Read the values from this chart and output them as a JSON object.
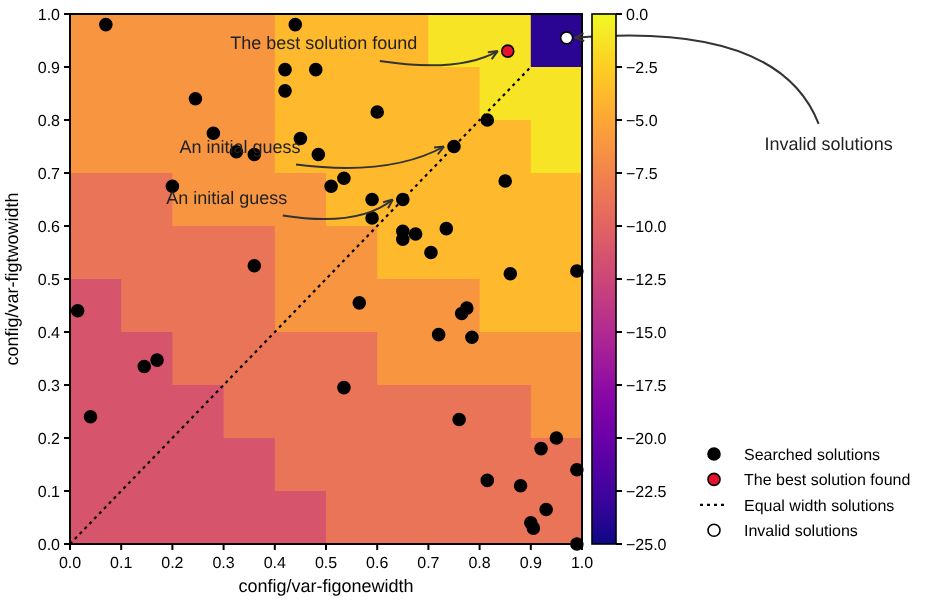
{
  "chart_data": {
    "type": "heatmap",
    "xlabel": "config/var-figonewidth",
    "ylabel": "config/var-figtwowidth",
    "xlim": [
      0,
      1
    ],
    "ylim": [
      0,
      1
    ],
    "xticks": [
      {
        "value": 0,
        "label": "0.0"
      },
      {
        "value": 0.1,
        "label": "0.1"
      },
      {
        "value": 0.2,
        "label": "0.2"
      },
      {
        "value": 0.3,
        "label": "0.3"
      },
      {
        "value": 0.4,
        "label": "0.4"
      },
      {
        "value": 0.5,
        "label": "0.5"
      },
      {
        "value": 0.6,
        "label": "0.6"
      },
      {
        "value": 0.7,
        "label": "0.7"
      },
      {
        "value": 0.8,
        "label": "0.8"
      },
      {
        "value": 0.9,
        "label": "0.9"
      },
      {
        "value": 1,
        "label": "1.0"
      }
    ],
    "yticks": [
      {
        "value": 0,
        "label": "0.0"
      },
      {
        "value": 0.1,
        "label": "0.1"
      },
      {
        "value": 0.2,
        "label": "0.2"
      },
      {
        "value": 0.3,
        "label": "0.3"
      },
      {
        "value": 0.4,
        "label": "0.4"
      },
      {
        "value": 0.5,
        "label": "0.5"
      },
      {
        "value": 0.6,
        "label": "0.6"
      },
      {
        "value": 0.7,
        "label": "0.7"
      },
      {
        "value": 0.8,
        "label": "0.8"
      },
      {
        "value": 0.9,
        "label": "0.9"
      },
      {
        "value": 1,
        "label": "1.0"
      }
    ],
    "clim": [
      -25,
      0
    ],
    "cticks": [
      {
        "value": 0,
        "label": "0.0"
      },
      {
        "value": -2.5,
        "label": "−2.5"
      },
      {
        "value": -5,
        "label": "−5.0"
      },
      {
        "value": -7.5,
        "label": "−7.5"
      },
      {
        "value": -10,
        "label": "−10.0"
      },
      {
        "value": -12.5,
        "label": "−12.5"
      },
      {
        "value": -15,
        "label": "−15.0"
      },
      {
        "value": -17.5,
        "label": "−17.5"
      },
      {
        "value": -20,
        "label": "−20.0"
      },
      {
        "value": -22.5,
        "label": "−22.5"
      },
      {
        "value": -25,
        "label": "−25.0"
      }
    ],
    "cells": [
      [
        -6.25,
        -6.25,
        -6.25,
        -6.25,
        -3.75,
        -3.75,
        -3.75,
        -1.25,
        -1.25,
        -23.75
      ],
      [
        -6.25,
        -6.25,
        -6.25,
        -6.25,
        -3.75,
        -3.75,
        -3.75,
        -3.75,
        -1.25,
        -1.25
      ],
      [
        -6.25,
        -6.25,
        -6.25,
        -6.25,
        -3.75,
        -3.75,
        -3.75,
        -3.75,
        -3.75,
        -1.25
      ],
      [
        -8.75,
        -8.75,
        -6.25,
        -6.25,
        -6.25,
        -3.75,
        -3.75,
        -3.75,
        -3.75,
        -3.75
      ],
      [
        -8.75,
        -8.75,
        -8.75,
        -8.75,
        -6.25,
        -6.25,
        -3.75,
        -3.75,
        -3.75,
        -3.75
      ],
      [
        -11.25,
        -8.75,
        -8.75,
        -8.75,
        -6.25,
        -6.25,
        -6.25,
        -6.25,
        -3.75,
        -3.75
      ],
      [
        -11.25,
        -11.25,
        -8.75,
        -8.75,
        -8.75,
        -8.75,
        -6.25,
        -6.25,
        -6.25,
        -6.25
      ],
      [
        -11.25,
        -11.25,
        -11.25,
        -8.75,
        -8.75,
        -8.75,
        -8.75,
        -8.75,
        -8.75,
        -6.25
      ],
      [
        -11.25,
        -11.25,
        -11.25,
        -11.25,
        -8.75,
        -8.75,
        -8.75,
        -8.75,
        -8.75,
        -8.75
      ],
      [
        -11.25,
        -11.25,
        -11.25,
        -11.25,
        -11.25,
        -8.75,
        -8.75,
        -8.75,
        -8.75,
        -8.75
      ]
    ],
    "series": [
      {
        "name": "Searched solutions",
        "type": "scatter",
        "marker": "circle",
        "color": "#000000",
        "x": [
          0.07,
          0.44,
          0.42,
          0.48,
          0.42,
          0.245,
          0.6,
          0.28,
          0.325,
          0.36,
          0.45,
          0.485,
          0.75,
          0.2,
          0.51,
          0.535,
          0.59,
          0.65,
          0.59,
          0.65,
          0.65,
          0.675,
          0.735,
          0.705,
          0.36,
          0.565,
          0.815,
          0.85,
          0.86,
          0.99,
          0.015,
          0.04,
          0.145,
          0.17,
          0.535,
          0.72,
          0.765,
          0.775,
          0.785,
          0.76,
          0.95,
          0.92,
          0.99,
          0.815,
          0.88,
          0.93,
          0.9,
          0.905,
          0.99
        ],
        "values": [
          0.98,
          0.98,
          0.895,
          0.895,
          0.855,
          0.84,
          0.815,
          0.775,
          0.74,
          0.735,
          0.765,
          0.735,
          0.75,
          0.675,
          0.675,
          0.69,
          0.65,
          0.65,
          0.615,
          0.59,
          0.575,
          0.585,
          0.595,
          0.55,
          0.525,
          0.455,
          0.8,
          0.685,
          0.51,
          0.515,
          0.44,
          0.24,
          0.335,
          0.347,
          0.295,
          0.395,
          0.435,
          0.445,
          0.39,
          0.235,
          0.2,
          0.18,
          0.14,
          0.12,
          0.11,
          0.065,
          0.04,
          0.03,
          0.0
        ]
      },
      {
        "name": "The best solution found",
        "type": "scatter",
        "marker": "circle",
        "color": "#e8112d",
        "x": [
          0.855
        ],
        "values": [
          0.93
        ]
      },
      {
        "name": "Equal width solutions",
        "type": "line",
        "line_style": "dotted",
        "color": "#000000",
        "x": [
          0,
          0.9
        ],
        "values": [
          0,
          0.9
        ]
      },
      {
        "name": "Invalid solutions",
        "type": "scatter",
        "marker": "circle",
        "color": "#ffffff",
        "x": [
          0.97
        ],
        "values": [
          0.955
        ]
      }
    ],
    "legend": "right",
    "annotations": [
      {
        "text": "The best solution found",
        "x": 0.855,
        "y": 0.93
      },
      {
        "text": "An initial guess",
        "x": 0.75,
        "y": 0.75
      },
      {
        "text": "An initial guess",
        "x": 0.65,
        "y": 0.65
      },
      {
        "text": "Invalid solutions",
        "x": 0.97,
        "y": 0.955
      }
    ]
  }
}
